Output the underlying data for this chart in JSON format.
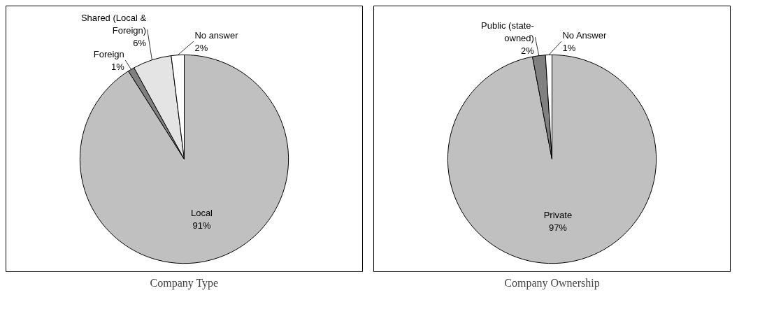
{
  "chart_data": [
    {
      "type": "pie",
      "title": "Company Type",
      "categories": [
        "Local",
        "Foreign",
        "Shared (Local & Foreign)",
        "No answer"
      ],
      "values": [
        91,
        1,
        6,
        2
      ],
      "value_labels": [
        "91%",
        "1%",
        "6%",
        "2%"
      ],
      "colors": [
        "#c0c0c0",
        "#808080",
        "#e4e4e4",
        "#ffffff"
      ]
    },
    {
      "type": "pie",
      "title": "Company Ownership",
      "categories": [
        "Private",
        "Public (state-owned)",
        "No Answer"
      ],
      "values": [
        97,
        2,
        1
      ],
      "value_labels": [
        "97%",
        "2%",
        "1%"
      ],
      "colors": [
        "#c0c0c0",
        "#808080",
        "#ffffff"
      ]
    }
  ]
}
